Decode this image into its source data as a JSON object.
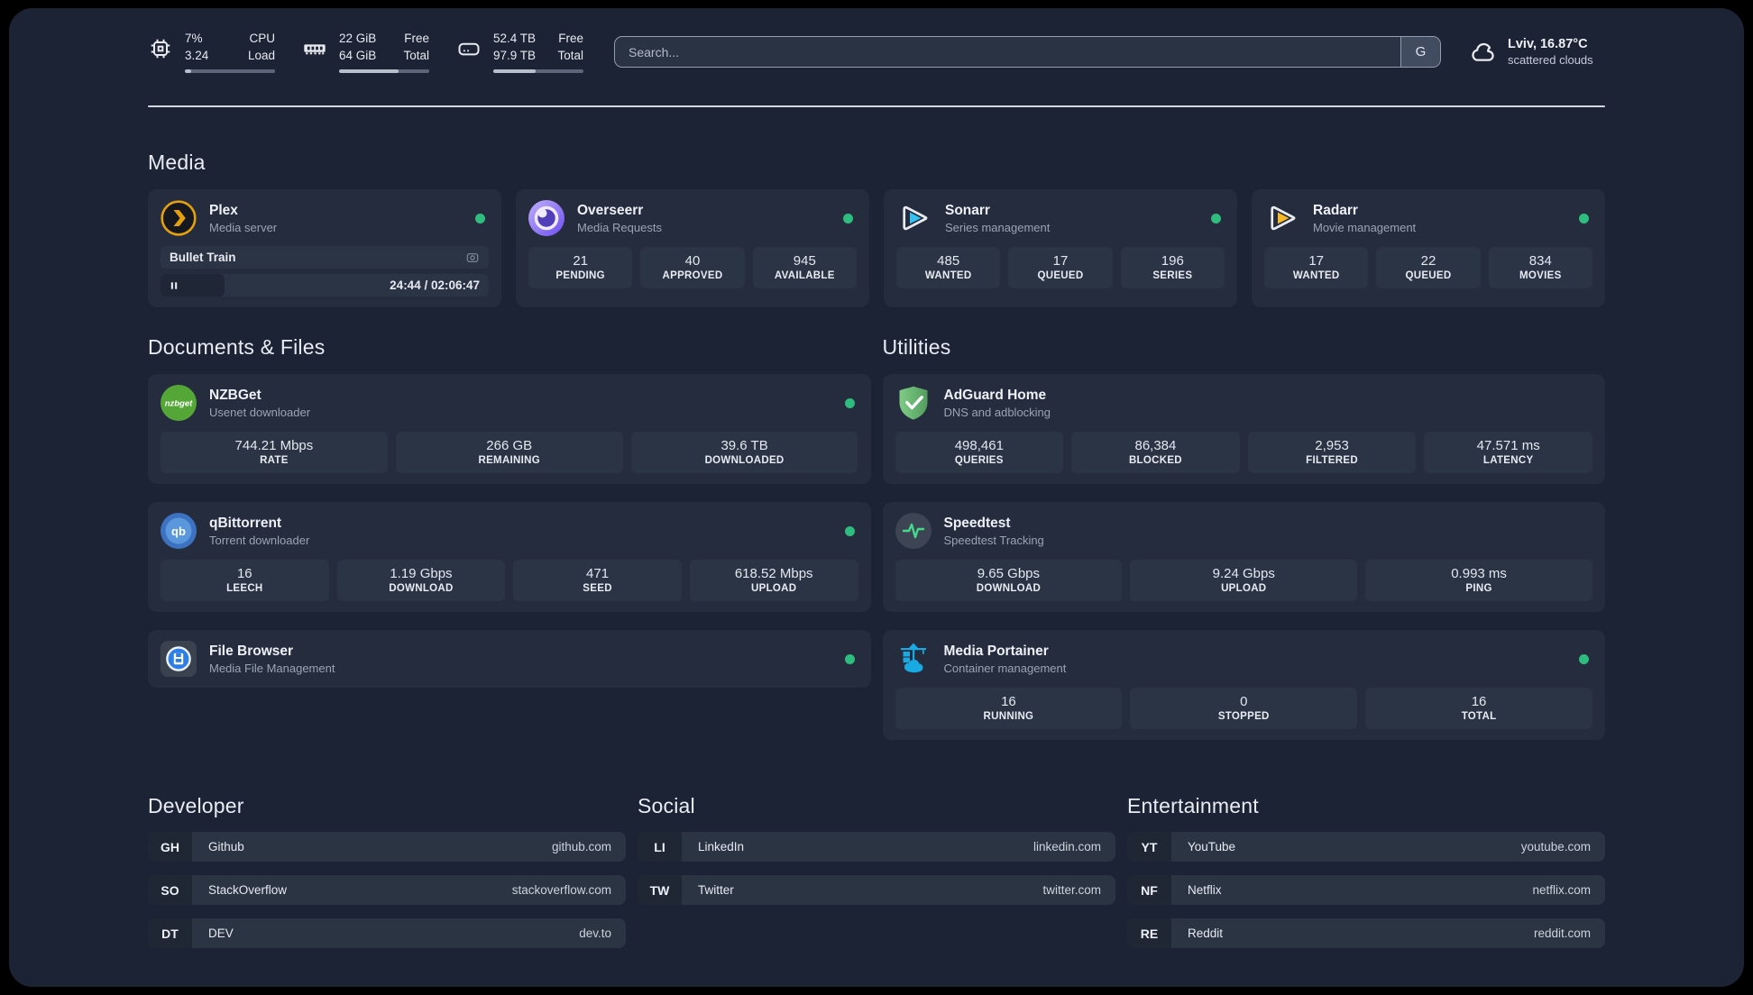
{
  "header": {
    "stats": [
      {
        "icon": "cpu-icon",
        "value_top": "7%",
        "value_bottom": "3.24",
        "label_top": "CPU",
        "label_bottom": "Load",
        "progress_pct": 7
      },
      {
        "icon": "ram-icon",
        "value_top": "22 GiB",
        "value_bottom": "64 GiB",
        "label_top": "Free",
        "label_bottom": "Total",
        "progress_pct": 66
      },
      {
        "icon": "disk-icon",
        "value_top": "52.4 TB",
        "value_bottom": "97.9 TB",
        "label_top": "Free",
        "label_bottom": "Total",
        "progress_pct": 47
      }
    ],
    "search": {
      "placeholder": "Search...",
      "button": "G"
    },
    "weather": {
      "location_temp": "Lviv, 16.87°C",
      "condition": "scattered clouds"
    }
  },
  "sections": {
    "media": {
      "title": "Media",
      "apps": [
        {
          "name": "Plex",
          "description": "Media server",
          "online": true,
          "icon": "plex",
          "now_playing": {
            "title": "Bullet Train",
            "time": "24:44 / 02:06:47",
            "progress_pct": 19.5
          }
        },
        {
          "name": "Overseerr",
          "description": "Media Requests",
          "online": true,
          "icon": "overseerr",
          "stats": [
            {
              "value": "21",
              "label": "PENDING"
            },
            {
              "value": "40",
              "label": "APPROVED"
            },
            {
              "value": "945",
              "label": "AVAILABLE"
            }
          ]
        },
        {
          "name": "Sonarr",
          "description": "Series management",
          "online": true,
          "icon": "sonarr",
          "stats": [
            {
              "value": "485",
              "label": "WANTED"
            },
            {
              "value": "17",
              "label": "QUEUED"
            },
            {
              "value": "196",
              "label": "SERIES"
            }
          ]
        },
        {
          "name": "Radarr",
          "description": "Movie management",
          "online": true,
          "icon": "radarr",
          "stats": [
            {
              "value": "17",
              "label": "WANTED"
            },
            {
              "value": "22",
              "label": "QUEUED"
            },
            {
              "value": "834",
              "label": "MOVIES"
            }
          ]
        }
      ]
    },
    "documents": {
      "title": "Documents & Files",
      "apps": [
        {
          "name": "NZBGet",
          "description": "Usenet downloader",
          "online": true,
          "icon": "nzbget",
          "stats": [
            {
              "value": "744.21 Mbps",
              "label": "RATE"
            },
            {
              "value": "266 GB",
              "label": "REMAINING"
            },
            {
              "value": "39.6 TB",
              "label": "DOWNLOADED"
            }
          ]
        },
        {
          "name": "qBittorrent",
          "description": "Torrent downloader",
          "online": true,
          "icon": "qbittorrent",
          "stats": [
            {
              "value": "16",
              "label": "LEECH"
            },
            {
              "value": "1.19 Gbps",
              "label": "DOWNLOAD"
            },
            {
              "value": "471",
              "label": "SEED"
            },
            {
              "value": "618.52 Mbps",
              "label": "UPLOAD"
            }
          ]
        },
        {
          "name": "File Browser",
          "description": "Media File Management",
          "online": true,
          "icon": "filebrowser"
        }
      ]
    },
    "utilities": {
      "title": "Utilities",
      "apps": [
        {
          "name": "AdGuard Home",
          "description": "DNS and adblocking",
          "online": false,
          "icon": "adguard",
          "stats": [
            {
              "value": "498,461",
              "label": "QUERIES"
            },
            {
              "value": "86,384",
              "label": "BLOCKED"
            },
            {
              "value": "2,953",
              "label": "FILTERED"
            },
            {
              "value": "47.571 ms",
              "label": "LATENCY"
            }
          ]
        },
        {
          "name": "Speedtest",
          "description": "Speedtest Tracking",
          "online": false,
          "icon": "speedtest",
          "stats": [
            {
              "value": "9.65 Gbps",
              "label": "DOWNLOAD"
            },
            {
              "value": "9.24 Gbps",
              "label": "UPLOAD"
            },
            {
              "value": "0.993 ms",
              "label": "PING"
            }
          ]
        },
        {
          "name": "Media Portainer",
          "description": "Container management",
          "online": true,
          "icon": "portainer",
          "stats": [
            {
              "value": "16",
              "label": "RUNNING"
            },
            {
              "value": "0",
              "label": "STOPPED"
            },
            {
              "value": "16",
              "label": "TOTAL"
            }
          ]
        }
      ]
    },
    "bookmarks": [
      {
        "title": "Developer",
        "links": [
          {
            "abbr": "GH",
            "name": "Github",
            "url": "github.com"
          },
          {
            "abbr": "SO",
            "name": "StackOverflow",
            "url": "stackoverflow.com"
          },
          {
            "abbr": "DT",
            "name": "DEV",
            "url": "dev.to"
          }
        ]
      },
      {
        "title": "Social",
        "links": [
          {
            "abbr": "LI",
            "name": "LinkedIn",
            "url": "linkedin.com"
          },
          {
            "abbr": "TW",
            "name": "Twitter",
            "url": "twitter.com"
          }
        ]
      },
      {
        "title": "Entertainment",
        "links": [
          {
            "abbr": "YT",
            "name": "YouTube",
            "url": "youtube.com"
          },
          {
            "abbr": "NF",
            "name": "Netflix",
            "url": "netflix.com"
          },
          {
            "abbr": "RE",
            "name": "Reddit",
            "url": "reddit.com"
          }
        ]
      }
    ]
  },
  "colors": {
    "online_dot": "#2ebd7e",
    "plex": "#e5a00d",
    "overseerr_light": "#c0b0fa",
    "overseerr_dark": "#6b4df0",
    "sonarr": "#33c2f2",
    "radarr": "#f9b924",
    "nzbget": "#54a636",
    "qbittorrent": "#5a97dd",
    "filebrowser": "#2d7fe8",
    "adguard_light": "#7fcb86",
    "adguard_dark": "#539e5e",
    "speedtest_line": "#43d98a",
    "portainer": "#1aa9e2"
  }
}
